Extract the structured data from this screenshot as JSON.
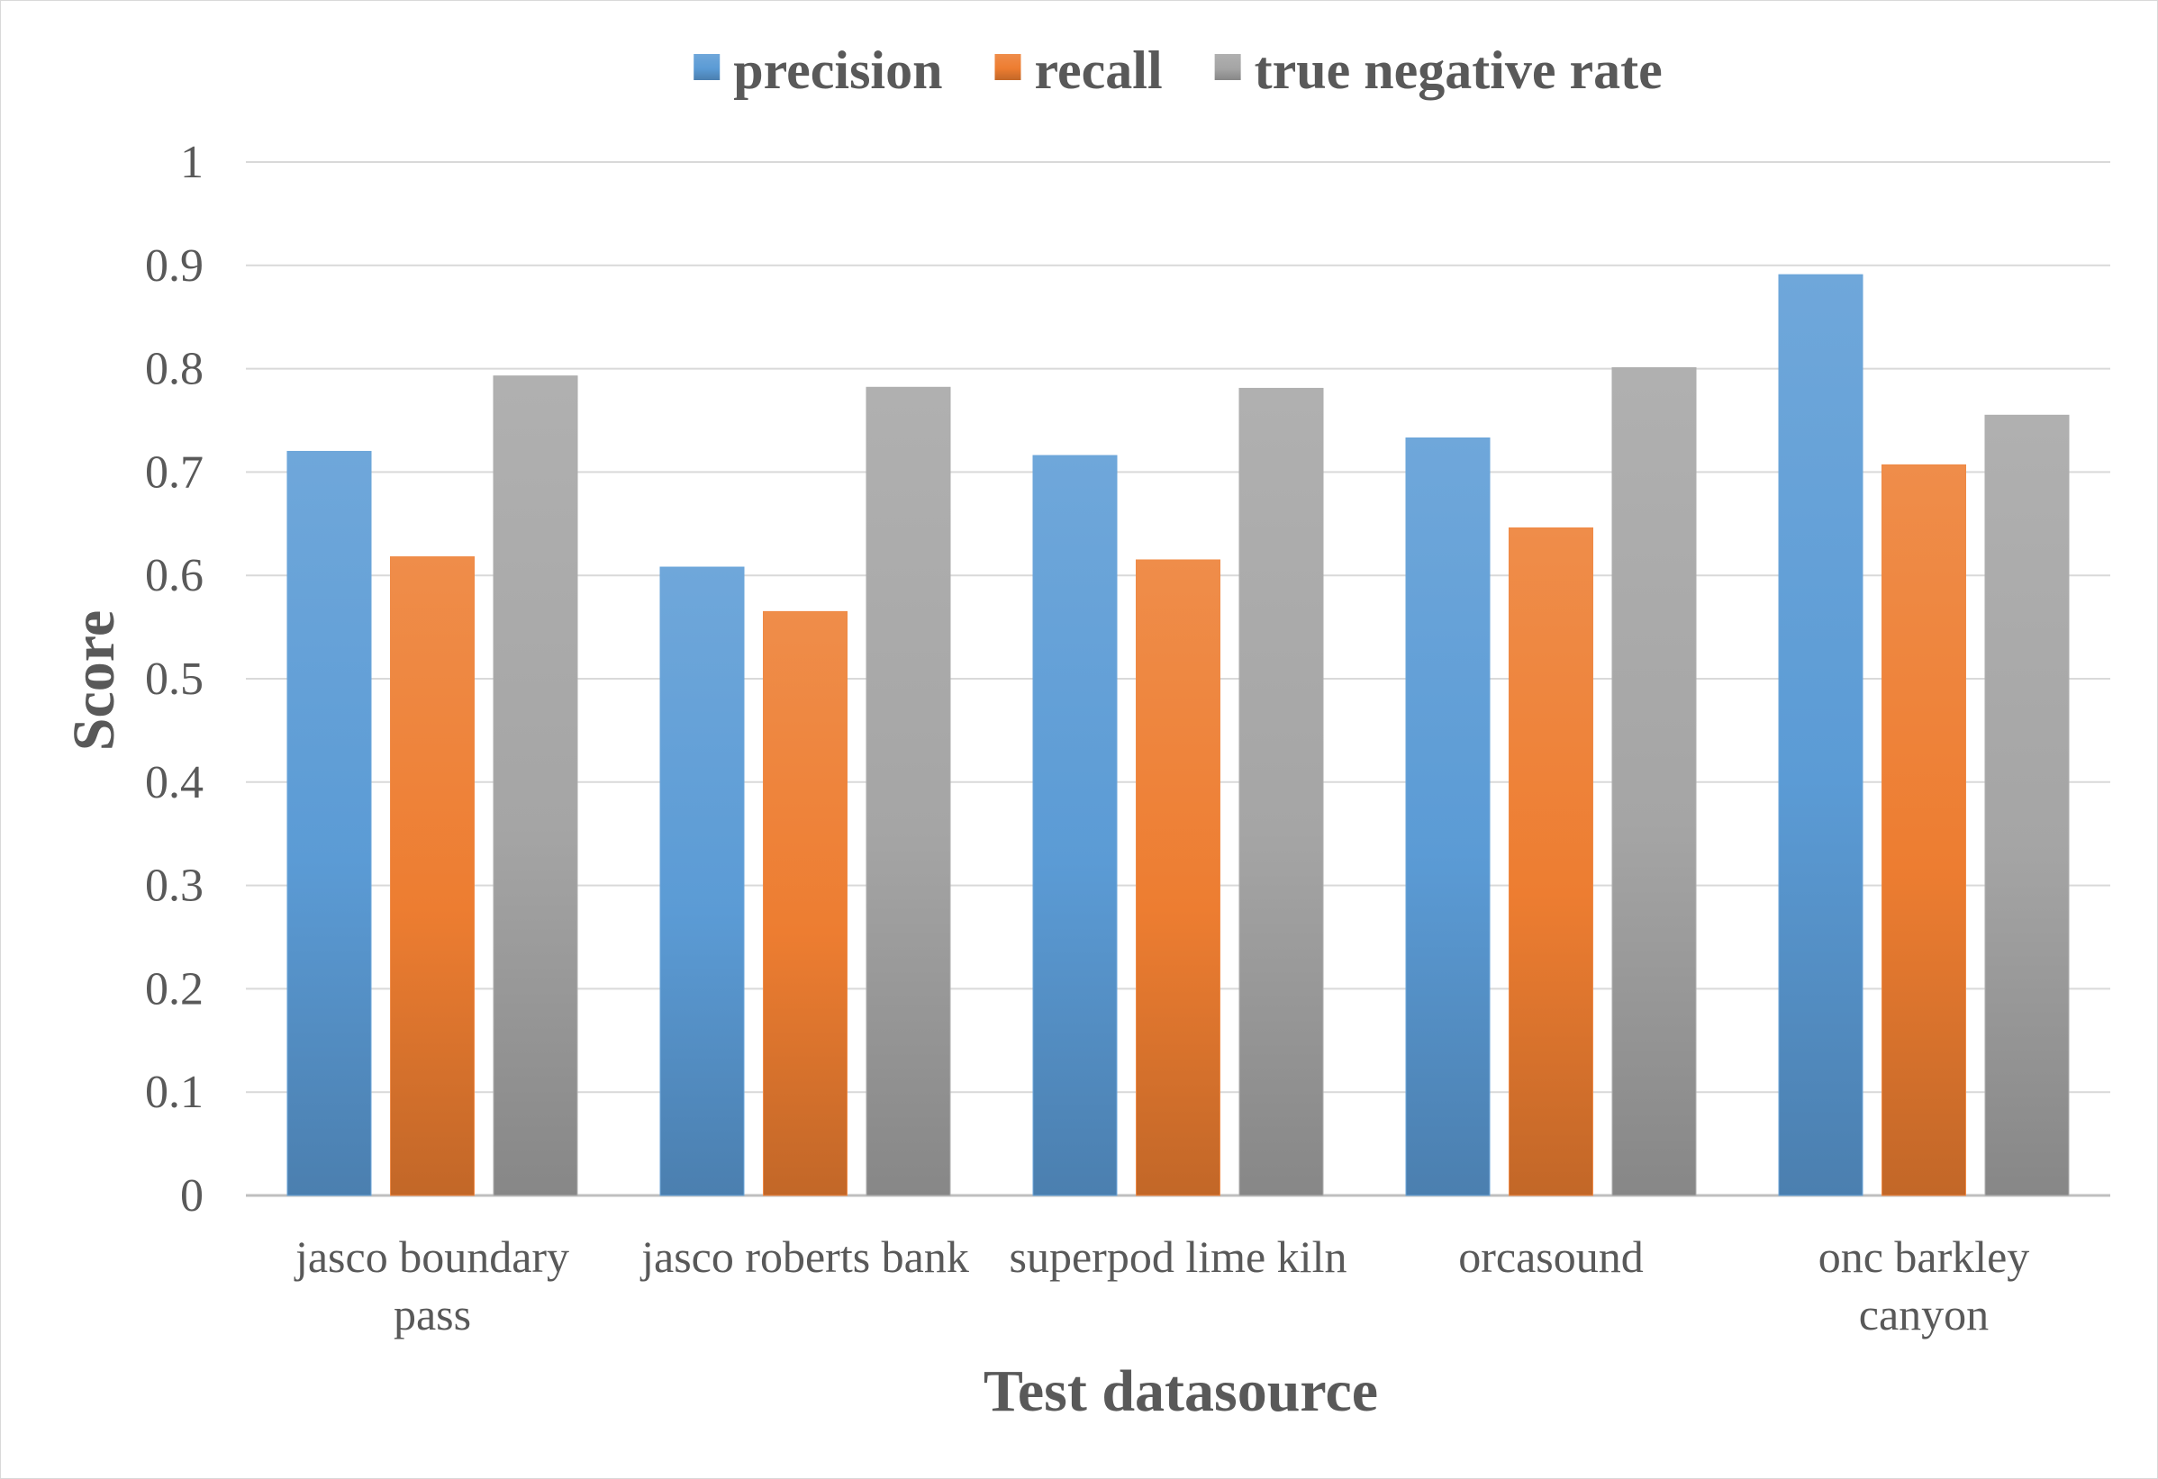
{
  "chart_data": {
    "type": "bar",
    "title": "",
    "xlabel": "Test datasource",
    "ylabel": "Score",
    "ylim": [
      0,
      1
    ],
    "yticks": [
      "0",
      "0.1",
      "0.2",
      "0.3",
      "0.4",
      "0.5",
      "0.6",
      "0.7",
      "0.8",
      "0.9",
      "1"
    ],
    "grid": true,
    "legend_position": "top-center",
    "categories": [
      [
        "jasco boundary",
        "pass"
      ],
      [
        "jasco roberts bank"
      ],
      [
        "superpod lime kiln"
      ],
      [
        "orcasound"
      ],
      [
        "onc barkley",
        "canyon"
      ]
    ],
    "series": [
      {
        "name": "precision",
        "color": "#5B9BD5",
        "values": [
          0.72,
          0.608,
          0.716,
          0.733,
          0.891
        ]
      },
      {
        "name": "recall",
        "color": "#ED7D31",
        "values": [
          0.618,
          0.565,
          0.615,
          0.646,
          0.707
        ]
      },
      {
        "name": "true negative rate",
        "color": "#A5A5A5",
        "values": [
          0.793,
          0.782,
          0.781,
          0.801,
          0.755
        ]
      }
    ]
  }
}
